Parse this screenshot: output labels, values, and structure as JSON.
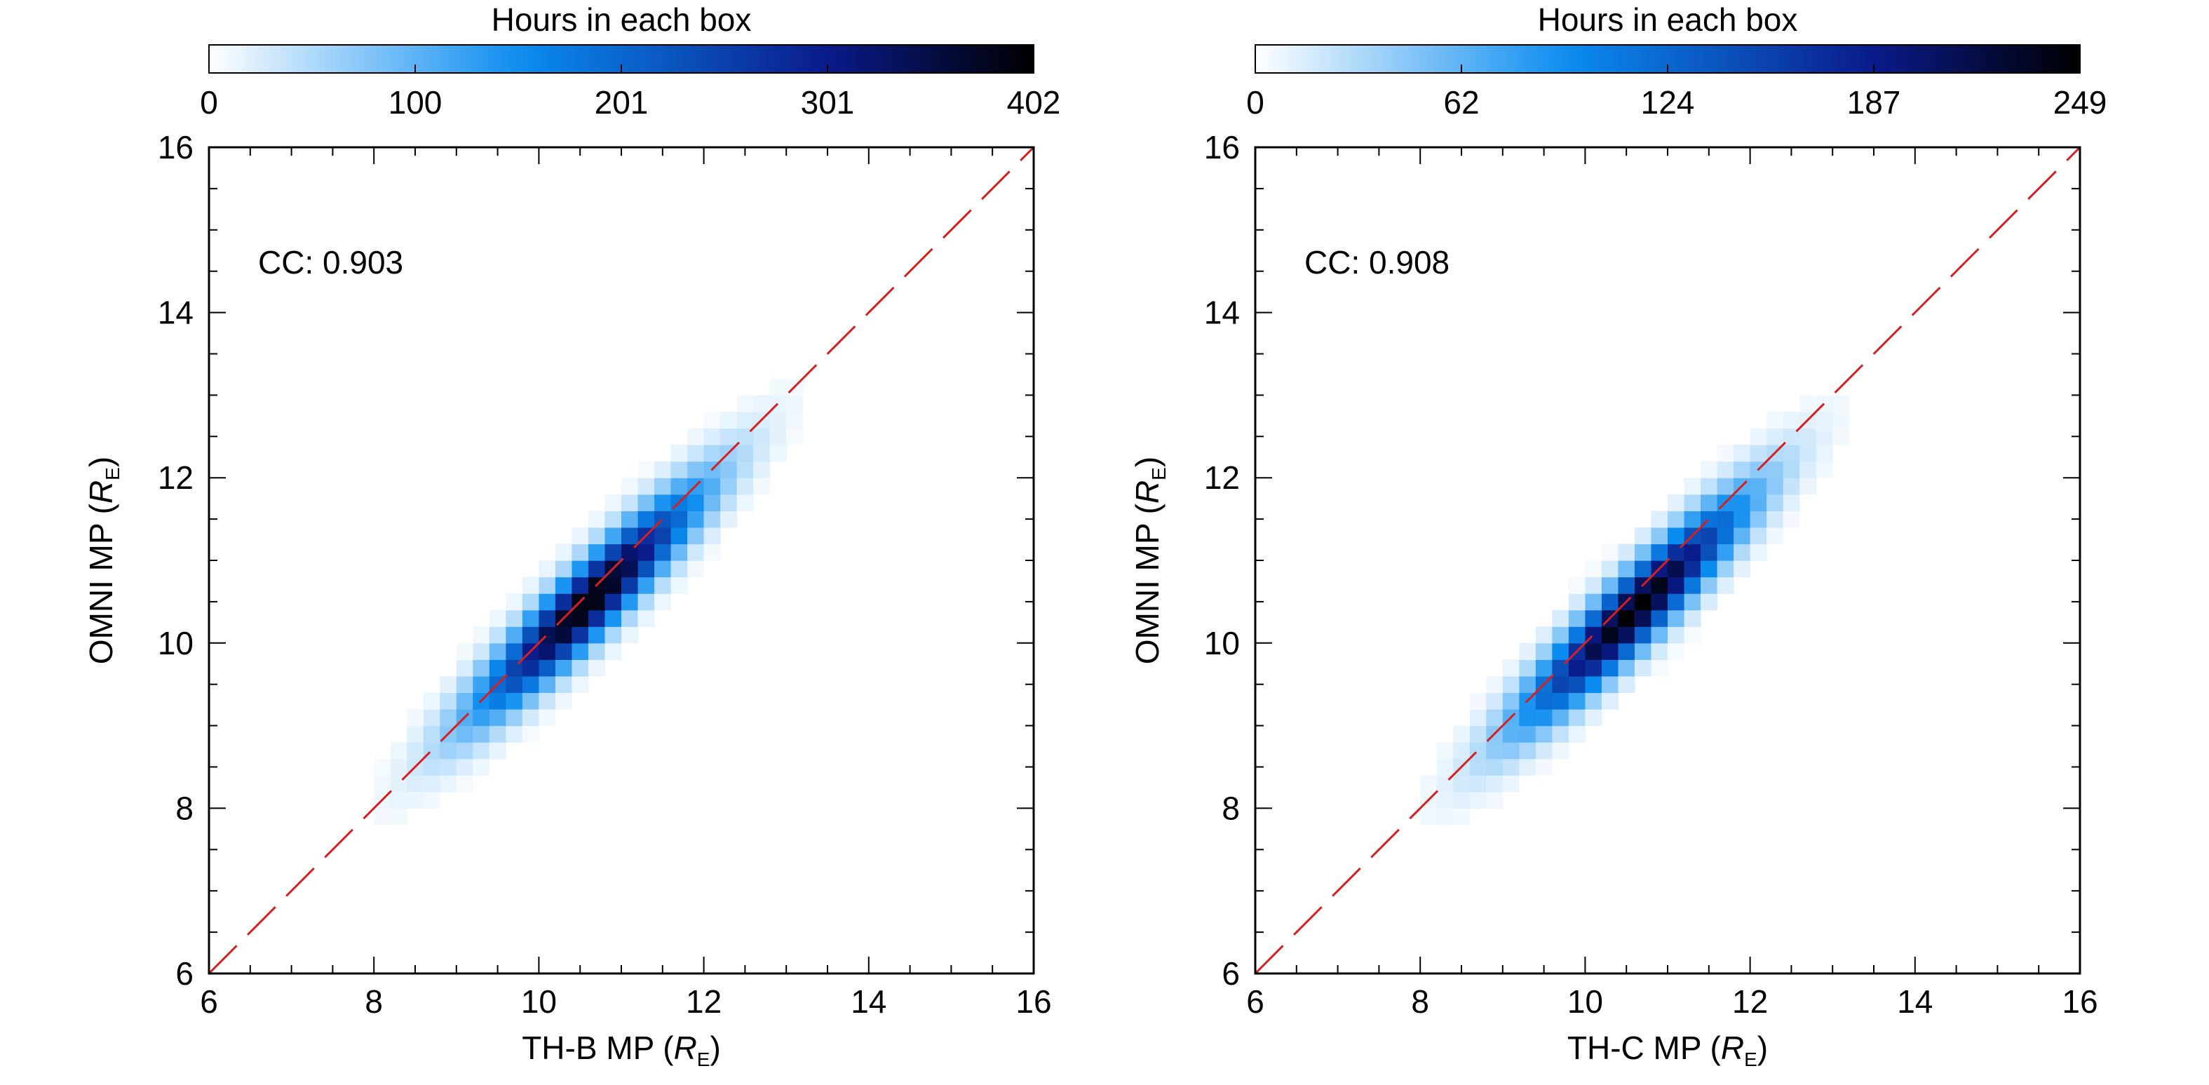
{
  "chart_data": [
    {
      "type": "heatmap",
      "colorbar": {
        "title": "Hours in each box",
        "ticks": [
          "0",
          "100",
          "201",
          "301",
          "402"
        ],
        "range": [
          0,
          402
        ]
      },
      "xlabel": "TH-B MP",
      "xlabel_unit": "R",
      "xlabel_unit_sub": "E",
      "ylabel": "OMNI MP",
      "ylabel_unit": "R",
      "ylabel_unit_sub": "E",
      "xlim": [
        6,
        16
      ],
      "ylim": [
        6,
        16
      ],
      "xticks": [
        "6",
        "8",
        "10",
        "12",
        "14",
        "16"
      ],
      "yticks": [
        "6",
        "8",
        "10",
        "12",
        "14",
        "16"
      ],
      "annotation": "CC: 0.903",
      "reference_line": {
        "from": [
          6,
          6
        ],
        "to": [
          16,
          16
        ],
        "style": "dashed",
        "color": "#d42020"
      },
      "distribution": {
        "center": [
          10.6,
          10.5
        ],
        "sigma_along": 1.25,
        "sigma_across": 0.24,
        "peak": 402,
        "bin_size": 0.2
      }
    },
    {
      "type": "heatmap",
      "colorbar": {
        "title": "Hours in each box",
        "ticks": [
          "0",
          "62",
          "124",
          "187",
          "249"
        ],
        "range": [
          0,
          249
        ]
      },
      "xlabel": "TH-C MP",
      "xlabel_unit": "R",
      "xlabel_unit_sub": "E",
      "ylabel": "OMNI MP",
      "ylabel_unit": "R",
      "ylabel_unit_sub": "E",
      "xlim": [
        6,
        16
      ],
      "ylim": [
        6,
        16
      ],
      "xticks": [
        "6",
        "8",
        "10",
        "12",
        "14",
        "16"
      ],
      "yticks": [
        "6",
        "8",
        "10",
        "12",
        "14",
        "16"
      ],
      "annotation": "CC: 0.908",
      "reference_line": {
        "from": [
          6,
          6
        ],
        "to": [
          16,
          16
        ],
        "style": "dashed",
        "color": "#d42020"
      },
      "distribution": {
        "center": [
          10.6,
          10.4
        ],
        "sigma_along": 1.25,
        "sigma_across": 0.24,
        "peak": 249,
        "bin_size": 0.2
      }
    }
  ],
  "colormap": [
    "#ffffff",
    "#0a8cf0",
    "#0a1a8a",
    "#000000"
  ]
}
